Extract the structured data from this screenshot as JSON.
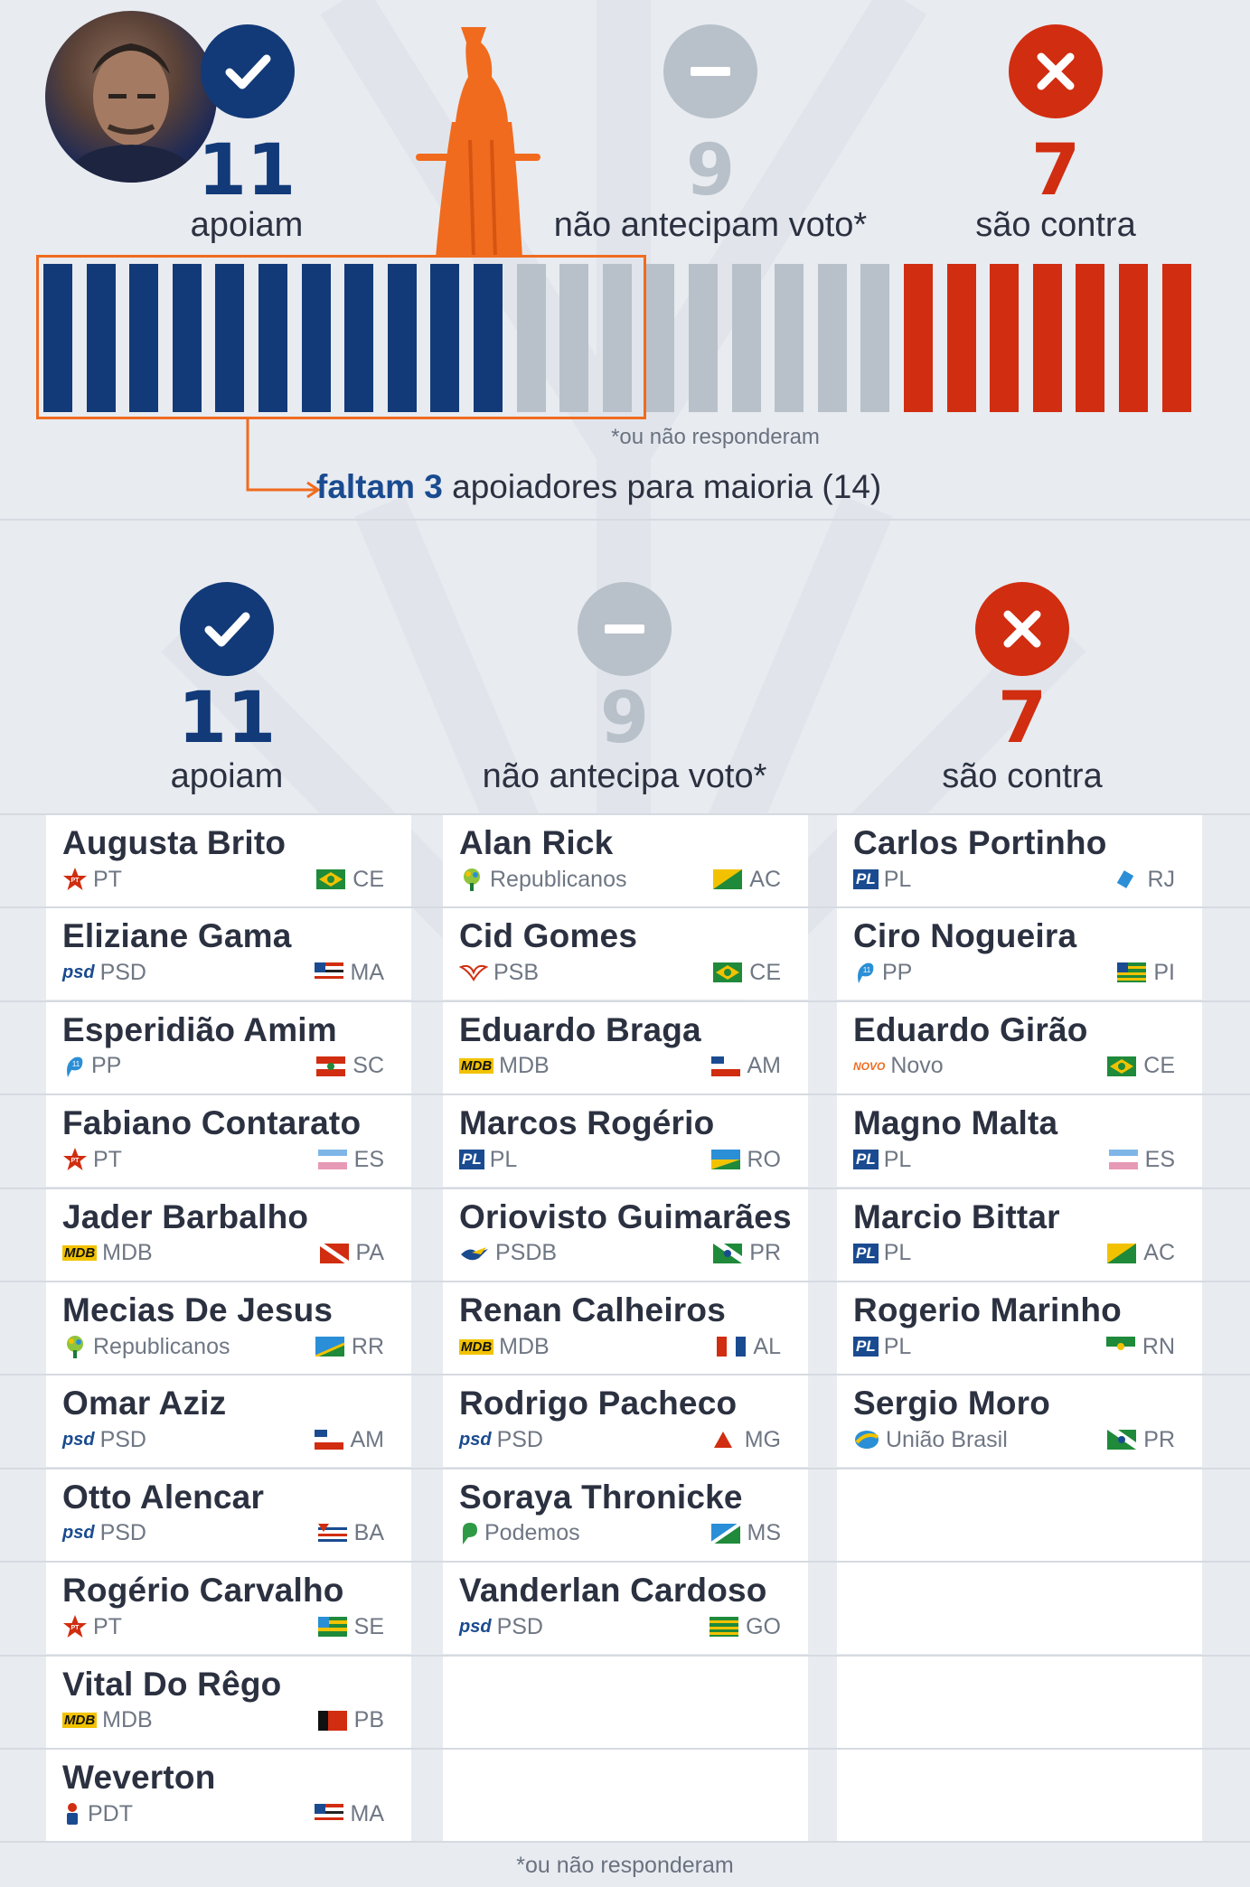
{
  "summary": {
    "support": {
      "count": "11",
      "label": "apoiam",
      "icon": "check-icon",
      "color": "#123a78"
    },
    "undecided": {
      "count": "9",
      "label": "não antecipam voto*",
      "icon": "minus-icon",
      "color": "#b8c1c9"
    },
    "against": {
      "count": "7",
      "label": "são contra",
      "icon": "x-icon",
      "color": "#d12d10"
    },
    "note": "*ou não responderam",
    "majority_prefix": "faltam 3",
    "majority_suffix": " apoiadores para maioria (14)",
    "majority_needed": 14
  },
  "columns": {
    "support": {
      "count": "11",
      "label": "apoiam"
    },
    "undecided": {
      "count": "9",
      "label": "não antecipa voto*"
    },
    "against": {
      "count": "7",
      "label": "são contra"
    }
  },
  "support": [
    {
      "name": "Augusta Brito",
      "party": "PT",
      "state": "CE"
    },
    {
      "name": "Eliziane Gama",
      "party": "PSD",
      "state": "MA"
    },
    {
      "name": "Esperidião Amim",
      "party": "PP",
      "state": "SC"
    },
    {
      "name": "Fabiano Contarato",
      "party": "PT",
      "state": "ES"
    },
    {
      "name": "Jader Barbalho",
      "party": "MDB",
      "state": "PA"
    },
    {
      "name": "Mecias De Jesus",
      "party": "Republicanos",
      "state": "RR"
    },
    {
      "name": "Omar Aziz",
      "party": "PSD",
      "state": "AM"
    },
    {
      "name": "Otto Alencar",
      "party": "PSD",
      "state": "BA"
    },
    {
      "name": "Rogério Carvalho",
      "party": "PT",
      "state": "SE"
    },
    {
      "name": "Vital Do Rêgo",
      "party": "MDB",
      "state": "PB"
    },
    {
      "name": "Weverton",
      "party": "PDT",
      "state": "MA"
    }
  ],
  "undecided": [
    {
      "name": "Alan Rick",
      "party": "Republicanos",
      "state": "AC"
    },
    {
      "name": "Cid Gomes",
      "party": "PSB",
      "state": "CE"
    },
    {
      "name": "Eduardo Braga",
      "party": "MDB",
      "state": "AM"
    },
    {
      "name": "Marcos Rogério",
      "party": "PL",
      "state": "RO"
    },
    {
      "name": "Oriovisto Guimarães",
      "party": "PSDB",
      "state": "PR"
    },
    {
      "name": "Renan Calheiros",
      "party": "MDB",
      "state": "AL"
    },
    {
      "name": "Rodrigo Pacheco",
      "party": "PSD",
      "state": "MG"
    },
    {
      "name": "Soraya Thronicke",
      "party": "Podemos",
      "state": "MS"
    },
    {
      "name": "Vanderlan Cardoso",
      "party": "PSD",
      "state": "GO"
    }
  ],
  "against": [
    {
      "name": "Carlos Portinho",
      "party": "PL",
      "state": "RJ"
    },
    {
      "name": "Ciro Nogueira",
      "party": "PP",
      "state": "PI"
    },
    {
      "name": "Eduardo Girão",
      "party": "Novo",
      "state": "CE"
    },
    {
      "name": "Magno Malta",
      "party": "PL",
      "state": "ES"
    },
    {
      "name": "Marcio Bittar",
      "party": "PL",
      "state": "AC"
    },
    {
      "name": "Rogerio Marinho",
      "party": "PL",
      "state": "RN"
    },
    {
      "name": "Sergio Moro",
      "party": "União Brasil",
      "state": "PR"
    }
  ],
  "party_logo_text": {
    "PSD": "psd",
    "MDB": "MDB",
    "PL": "PL",
    "Novo": "NOVO"
  },
  "colors": {
    "navy": "#123a78",
    "gray": "#b8c1c9",
    "red": "#d12d10",
    "orange": "#f06b1e",
    "background": "#e8ebf0",
    "card": "#ffffff"
  },
  "bottom_note": "*ou não responderam"
}
